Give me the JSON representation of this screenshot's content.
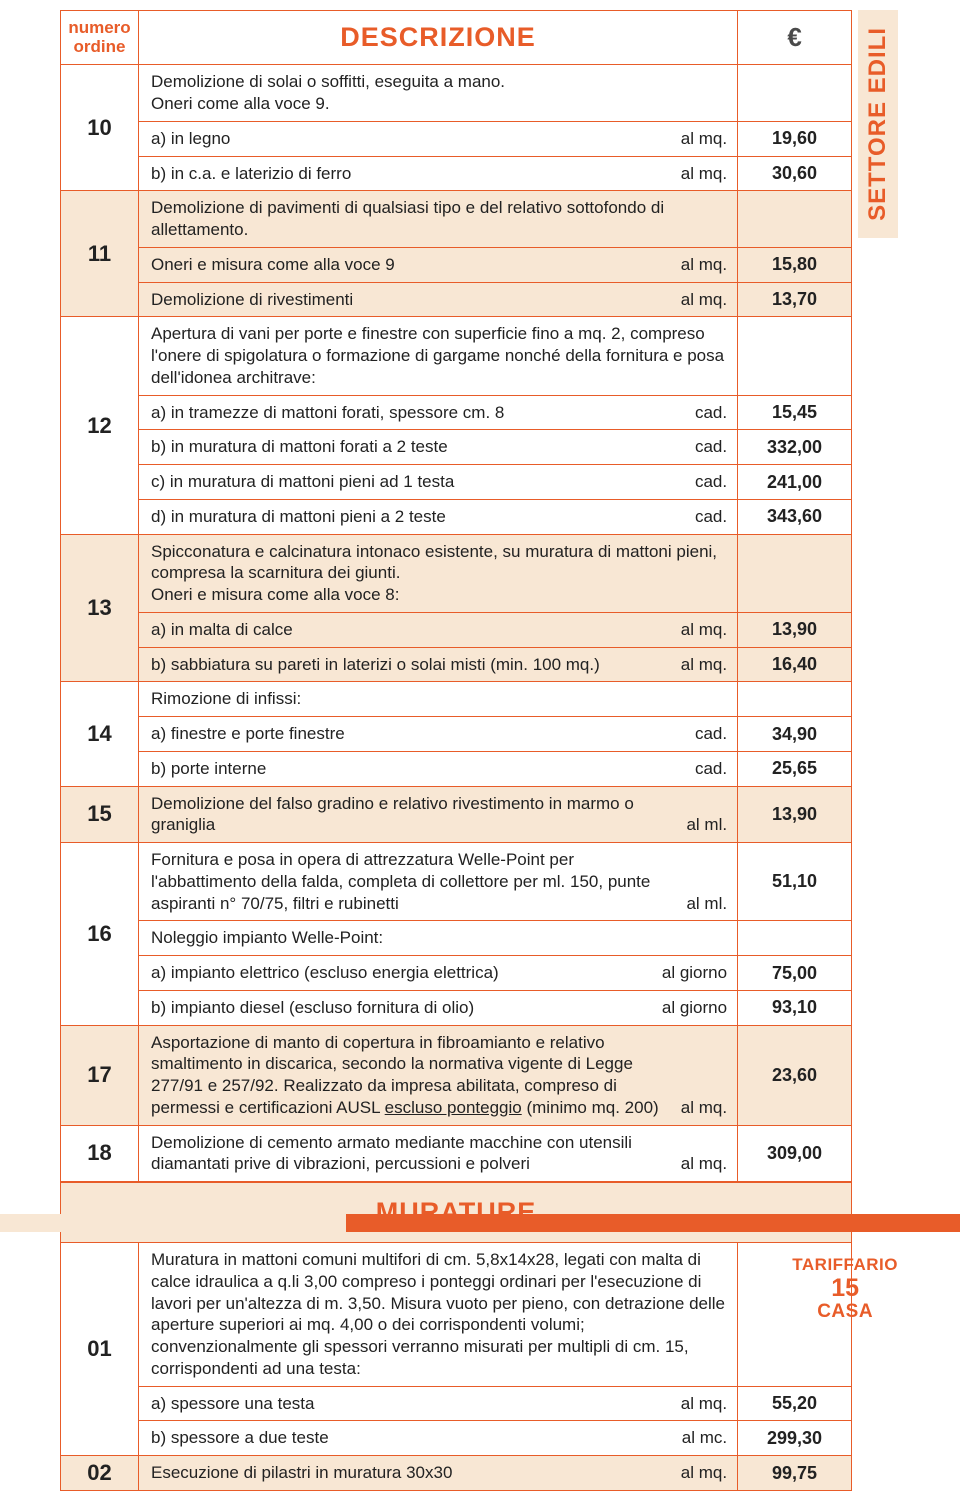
{
  "sideTab": "SETTORE EDILI",
  "headers": {
    "ord": "numero\nordine",
    "desc": "DESCRIZIONE",
    "price": "€"
  },
  "sectionHeader": "MURATURE",
  "footer": {
    "line1": "TARIFFARIO",
    "page": "15",
    "line2": "CASA"
  },
  "rows": [
    {
      "ord": "10",
      "shade": false,
      "items": [
        {
          "text": "Demolizione di solai o soffitti, eseguita a mano.\nOneri come alla voce 9.",
          "unit": "",
          "price": ""
        },
        {
          "text": "a)  in legno",
          "unit": "al mq.",
          "price": "19,60"
        },
        {
          "text": "b)  in c.a. e laterizio di ferro",
          "unit": "al mq.",
          "price": "30,60"
        }
      ]
    },
    {
      "ord": "11",
      "shade": true,
      "items": [
        {
          "text": "Demolizione di pavimenti di qualsiasi tipo e del relativo sottofondo di allettamento.",
          "unit": "",
          "price": ""
        },
        {
          "text": "Oneri e misura come alla voce 9",
          "unit": "al mq.",
          "price": "15,80"
        },
        {
          "text": "Demolizione di rivestimenti",
          "unit": "al mq.",
          "price": "13,70"
        }
      ]
    },
    {
      "ord": "12",
      "shade": false,
      "items": [
        {
          "text": "Apertura di vani per porte e finestre con superficie fino a mq. 2, compreso l'onere di spigolatura o formazione di gargame nonché della fornitura e posa dell'idonea architrave:",
          "unit": "",
          "price": ""
        },
        {
          "text": "a)  in tramezze di mattoni forati, spessore cm. 8",
          "unit": "cad.",
          "price": "15,45"
        },
        {
          "text": "b)  in muratura di mattoni forati a 2 teste",
          "unit": "cad.",
          "price": "332,00"
        },
        {
          "text": "c)  in muratura di mattoni pieni ad 1 testa",
          "unit": "cad.",
          "price": "241,00"
        },
        {
          "text": "d)  in muratura di mattoni pieni a 2 teste",
          "unit": "cad.",
          "price": "343,60"
        }
      ]
    },
    {
      "ord": "13",
      "shade": true,
      "items": [
        {
          "text": "Spicconatura e calcinatura intonaco esistente, su muratura di mattoni pieni, compresa la scarnitura dei giunti.\nOneri e misura come alla voce 8:",
          "unit": "",
          "price": ""
        },
        {
          "text": "a)  in malta di calce",
          "unit": "al mq.",
          "price": "13,90"
        },
        {
          "text": "b)  sabbiatura su pareti in laterizi o solai misti (min. 100 mq.)",
          "unit": "al mq.",
          "price": "16,40"
        }
      ]
    },
    {
      "ord": "14",
      "shade": false,
      "items": [
        {
          "text": "Rimozione di infissi:",
          "unit": "",
          "price": ""
        },
        {
          "text": "a)  finestre e porte finestre",
          "unit": "cad.",
          "price": "34,90"
        },
        {
          "text": "b)  porte interne",
          "unit": "cad.",
          "price": "25,65"
        }
      ]
    },
    {
      "ord": "15",
      "shade": true,
      "items": [
        {
          "text": "Demolizione del falso gradino e relativo rivestimento in marmo o graniglia",
          "unit": "al ml.",
          "price": "13,90"
        }
      ]
    },
    {
      "ord": "16",
      "shade": false,
      "items": [
        {
          "text": "Fornitura e posa in opera di attrezzatura Welle-Point per l'abbattimento della falda, completa di collettore per ml. 150, punte aspiranti n° 70/75, filtri e rubinetti",
          "unit": "al ml.",
          "price": "51,10"
        },
        {
          "text": "Noleggio impianto Welle-Point:",
          "unit": "",
          "price": ""
        },
        {
          "text": "a)  impianto elettrico (escluso energia elettrica)",
          "unit": "al giorno",
          "price": "75,00"
        },
        {
          "text": "b)  impianto diesel (escluso fornitura di olio)",
          "unit": "al giorno",
          "price": "93,10"
        }
      ]
    },
    {
      "ord": "17",
      "shade": true,
      "items": [
        {
          "html": "Asportazione di manto di copertura in fibroamianto e relativo smaltimento in discarica, secondo la normativa vigente di Legge 277/91 e 257/92. Realizzato da impresa abilitata, compreso di permessi e certificazioni AUSL <span class='underl'>escluso ponteggio</span>  (minimo mq. 200)",
          "unit": "al mq.",
          "price": "23,60"
        }
      ]
    },
    {
      "ord": "18",
      "shade": false,
      "items": [
        {
          "text": "Demolizione di cemento armato mediante macchine con utensili diamantati prive di vibrazioni, percussioni e polveri",
          "unit": "al mq.",
          "price": "309,00"
        }
      ]
    }
  ],
  "section2": [
    {
      "ord": "01",
      "shade": false,
      "items": [
        {
          "text": "Muratura in mattoni comuni multifori di cm. 5,8x14x28, legati con malta di calce idraulica a q.li 3,00 compreso i ponteggi ordinari per l'esecuzione di lavori per un'altezza di m. 3,50. Misura vuoto per pieno, con detrazione delle aperture superiori ai mq. 4,00 o dei corrispondenti volumi; convenzionalmente gli spessori verranno misurati per multipli di cm. 15, corrispondenti ad una testa:",
          "unit": "",
          "price": ""
        },
        {
          "text": "a)  spessore una testa",
          "unit": "al mq.",
          "price": "55,20"
        },
        {
          "text": "b)  spessore a due teste",
          "unit": "al mc.",
          "price": "299,30"
        }
      ]
    },
    {
      "ord": "02",
      "shade": true,
      "items": [
        {
          "text": "Esecuzione di pilastri in muratura 30x30",
          "unit": "al mq.",
          "price": "99,75"
        }
      ]
    }
  ]
}
